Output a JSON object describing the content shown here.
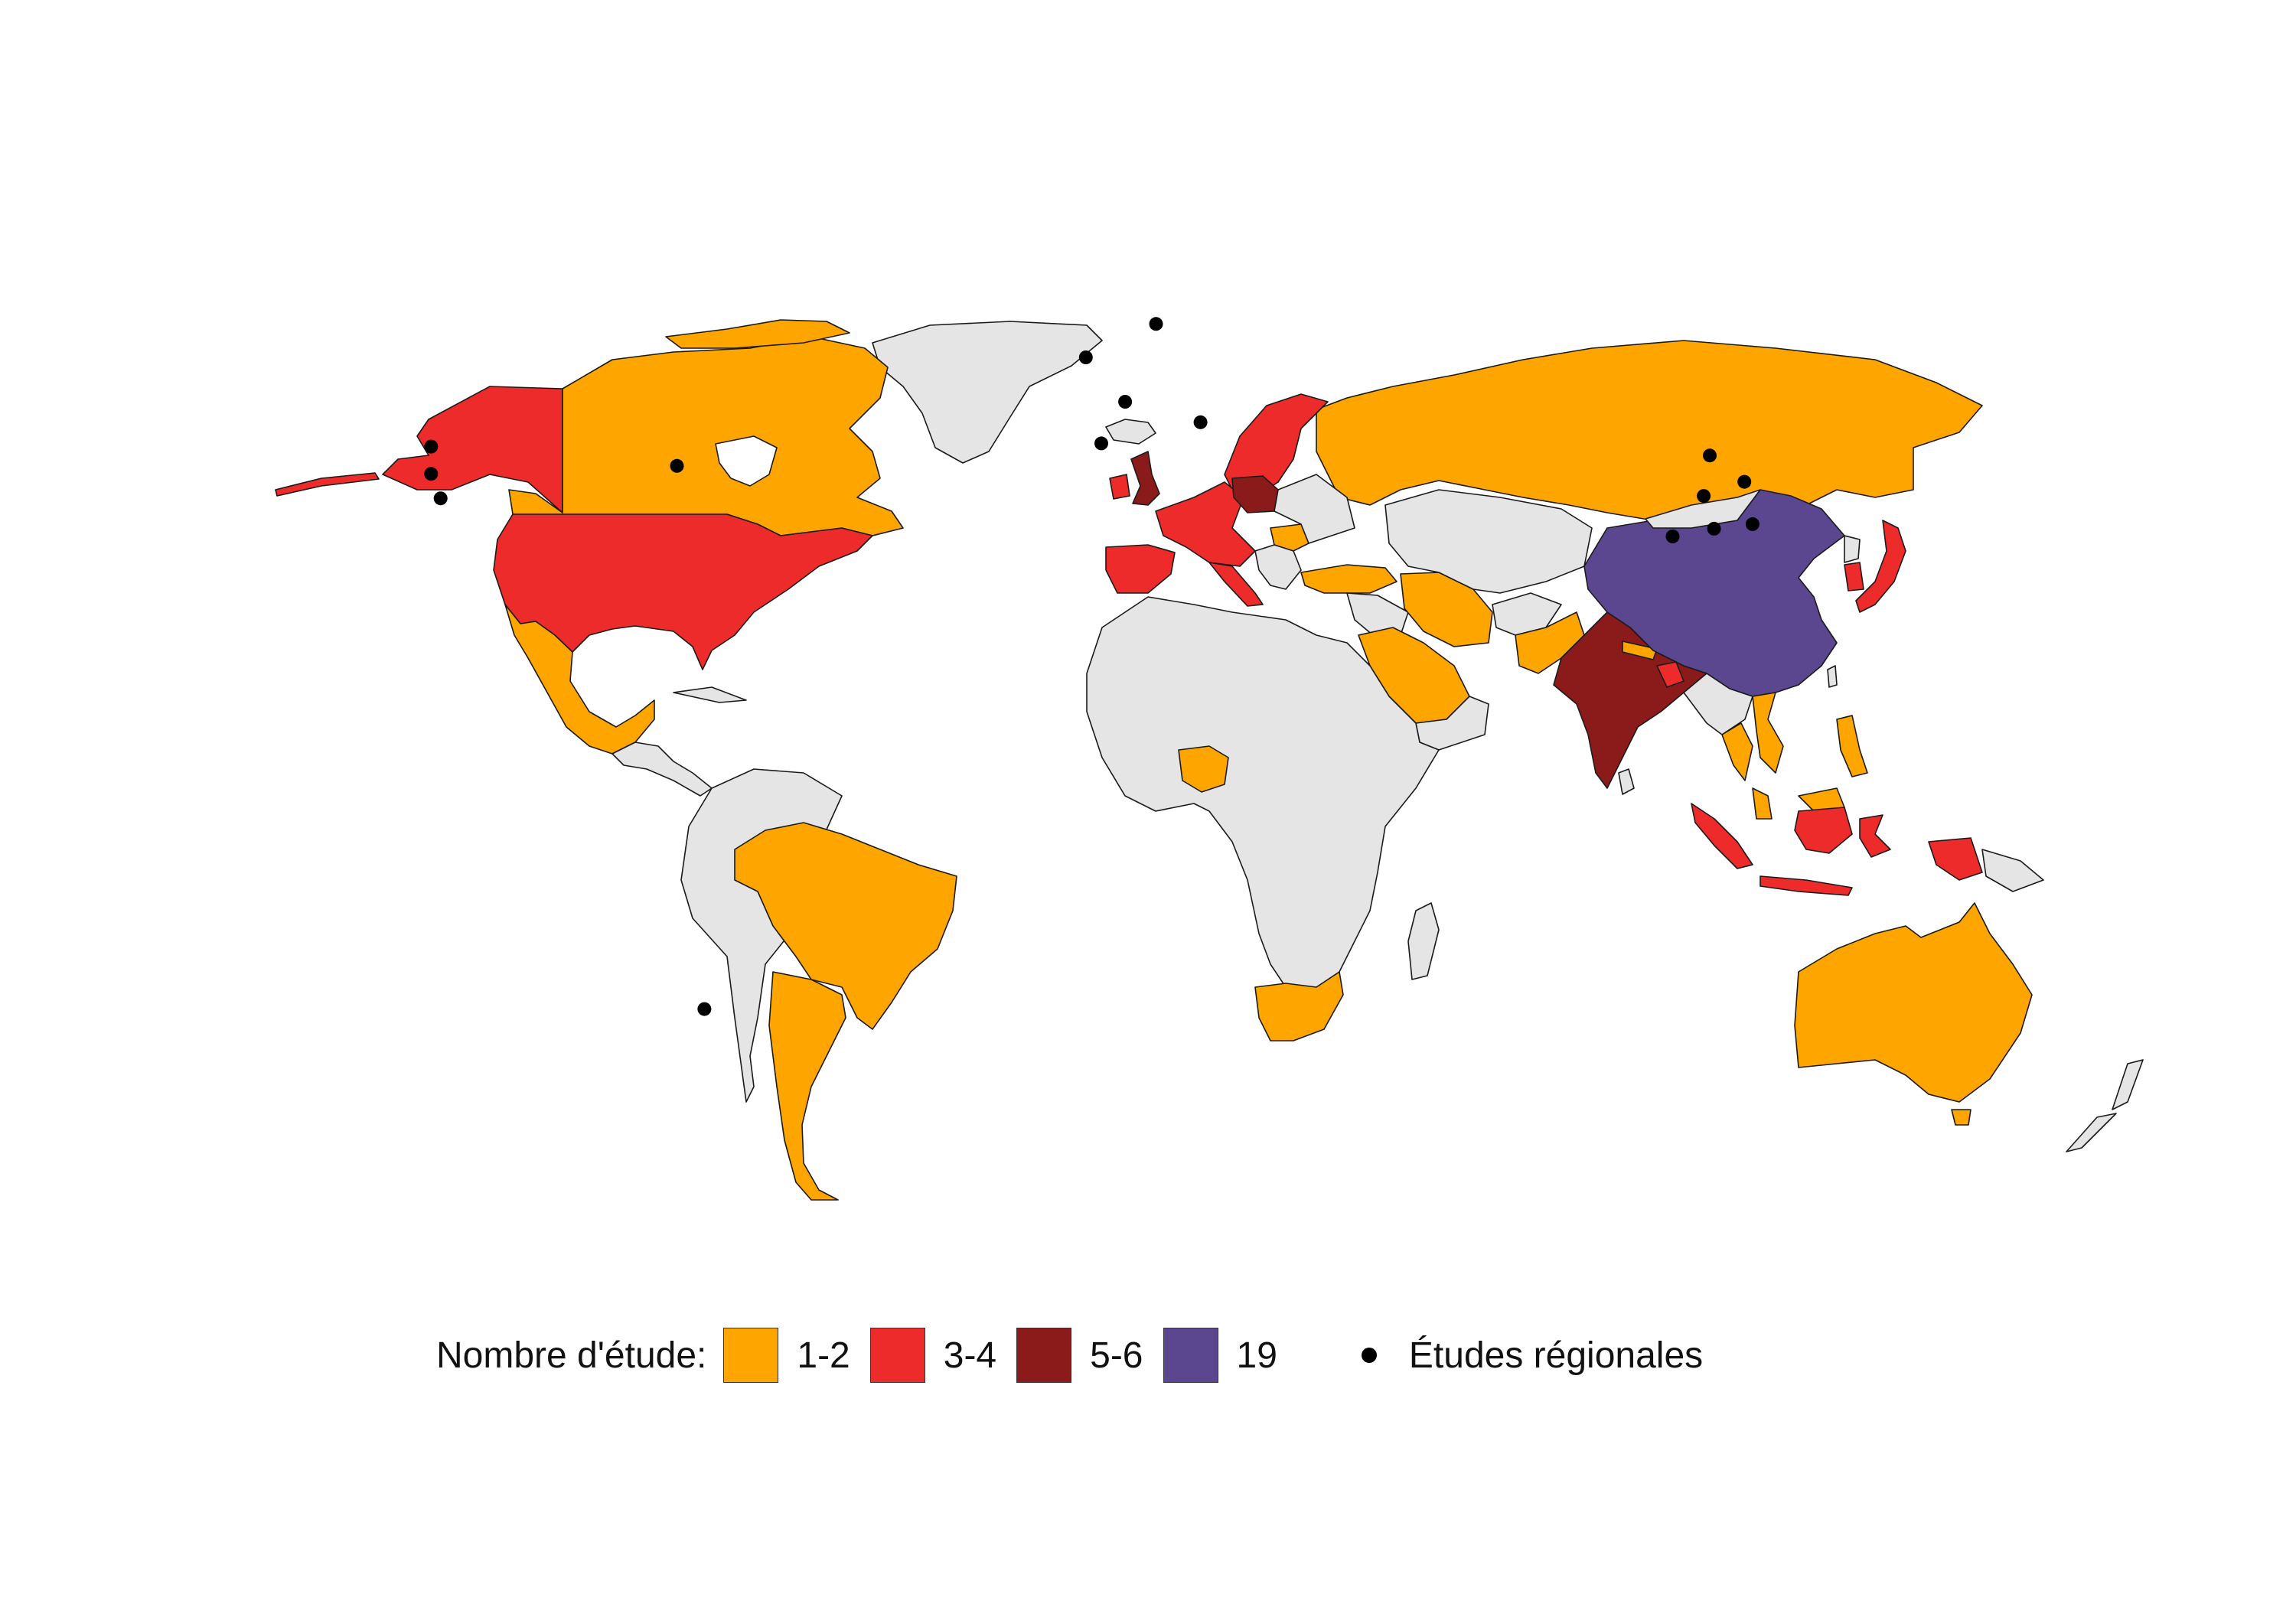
{
  "colors": {
    "no_data": "#e5e5e5",
    "bin_1_2": "#ffa500",
    "bin_3_4": "#ee2b2b",
    "bin_5_6": "#8b1a1a",
    "bin_19": "#5b4790",
    "dot": "#000000"
  },
  "legend": {
    "title": "Nombre d'étude:",
    "bins": [
      {
        "label": "1-2",
        "color": "#ffa500"
      },
      {
        "label": "3-4",
        "color": "#ee2b2b"
      },
      {
        "label": "5-6",
        "color": "#8b1a1a"
      },
      {
        "label": "19",
        "color": "#5b4790"
      }
    ],
    "regional_label": "Études régionales"
  },
  "countries": [
    {
      "name": "Chine",
      "studies": "19"
    },
    {
      "name": "Inde",
      "studies": "5-6"
    },
    {
      "name": "Royaume-Uni",
      "studies": "5-6"
    },
    {
      "name": "Pologne",
      "studies": "5-6"
    },
    {
      "name": "États-Unis",
      "studies": "3-4"
    },
    {
      "name": "Alaska",
      "studies": "3-4"
    },
    {
      "name": "Japon",
      "studies": "3-4"
    },
    {
      "name": "Indonésie",
      "studies": "3-4"
    },
    {
      "name": "Scandinavie",
      "studies": "3-4"
    },
    {
      "name": "Europe de l'Ouest",
      "studies": "3-4"
    },
    {
      "name": "Espagne",
      "studies": "3-4"
    },
    {
      "name": "Italie",
      "studies": "3-4"
    },
    {
      "name": "Canada",
      "studies": "1-2"
    },
    {
      "name": "Mexique",
      "studies": "1-2"
    },
    {
      "name": "Brésil",
      "studies": "1-2"
    },
    {
      "name": "Argentine",
      "studies": "1-2"
    },
    {
      "name": "Russie",
      "studies": "1-2"
    },
    {
      "name": "Australie",
      "studies": "1-2"
    },
    {
      "name": "Arabie saoudite",
      "studies": "1-2"
    },
    {
      "name": "Iran",
      "studies": "1-2"
    },
    {
      "name": "Turquie",
      "studies": "1-2"
    },
    {
      "name": "Pakistan",
      "studies": "1-2"
    },
    {
      "name": "Nigeria",
      "studies": "1-2"
    },
    {
      "name": "Afrique du Sud",
      "studies": "1-2"
    },
    {
      "name": "Viêt Nam",
      "studies": "1-2"
    },
    {
      "name": "Malaisie",
      "studies": "1-2"
    },
    {
      "name": "Thaïlande",
      "studies": "1-2"
    },
    {
      "name": "Philippines",
      "studies": "1-2"
    },
    {
      "name": "Corée du Sud",
      "studies": "3-4"
    },
    {
      "name": "Bangladesh",
      "studies": "3-4"
    },
    {
      "name": "Roumanie",
      "studies": "1-2"
    }
  ],
  "regional_study_points": [
    {
      "lat": 41,
      "lon": -124
    },
    {
      "lat": 37.6,
      "lon": -122.5
    },
    {
      "lat": 34.5,
      "lon": -119.5
    },
    {
      "lat": 38.6,
      "lon": -77
    },
    {
      "lat": -33.5,
      "lon": -70.6
    },
    {
      "lat": 51.8,
      "lon": -1.2
    },
    {
      "lat": 46.5,
      "lon": 6.6
    },
    {
      "lat": 55.7,
      "lon": 12.6
    },
    {
      "lat": 41.4,
      "lon": 2.2
    },
    {
      "lat": 44,
      "lon": 21
    },
    {
      "lat": 39.9,
      "lon": 116.4
    },
    {
      "lat": 34.8,
      "lon": 113.6
    },
    {
      "lat": 30.6,
      "lon": 114.3
    },
    {
      "lat": 36.6,
      "lon": 121.7
    },
    {
      "lat": 31.2,
      "lon": 121.5
    },
    {
      "lat": 29.6,
      "lon": 106.5
    }
  ]
}
